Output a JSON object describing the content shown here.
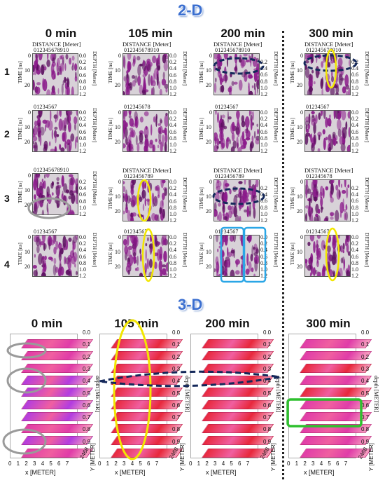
{
  "header": {
    "title_2d": "2-D",
    "title_3d": "3-D"
  },
  "columns_2d": [
    {
      "label": "0 min"
    },
    {
      "label": "105 min"
    },
    {
      "label": "200 min"
    },
    {
      "label": "300 min"
    }
  ],
  "columns_3d": [
    {
      "label": "0 min"
    },
    {
      "label": "105 min"
    },
    {
      "label": "200 min"
    },
    {
      "label": "300 min"
    }
  ],
  "rows": [
    "1",
    "2",
    "3",
    "4"
  ],
  "radar_axes": {
    "distance_label": "DISTANCE [Meter]",
    "time_label": "TIME [ns]",
    "depth_label": "DEPTH [Meter]",
    "ticks_10": "0 1 2 3 4 5 6 7 8 9 10",
    "ticks_9": "0 1 2 3 4 5 6 7 8 9",
    "ticks_8": "0 1 2 3 4 5 6 7 8",
    "ticks_7": "0 1 2 3 4 5 6 7",
    "time_ticks": [
      "0",
      "10",
      "20"
    ],
    "depth_ticks_a": [
      "0.0",
      "0.2",
      "0.4",
      "0.6",
      "0.8",
      "1.0",
      "1.2"
    ],
    "depth_ticks_b": [
      "0.2",
      "0.4",
      "0.6",
      "0.8",
      "1.0",
      "1.2"
    ]
  },
  "cube_axes": {
    "depth_label": "depth [METER]",
    "x_label": "x [METER]",
    "y_label": "Y [METER]",
    "x_ticks": "0 1 2 3 4 5 6 7",
    "y_ticks": "2 4 6 8",
    "depth_ticks": [
      "0.0",
      "0.1",
      "0.2",
      "0.3",
      "0.4",
      "0.5",
      "0.6",
      "0.7",
      "0.8",
      "0.9"
    ]
  },
  "colors": {
    "title_blue": "#3b6fd0",
    "radar_purple": "#8a1a8a",
    "radar_grey": "#d0d0d0",
    "slice_red": "#e8283c",
    "slice_pink": "#e03ca8",
    "slice_violet": "#b23ce0",
    "marker_navy": "#14285a",
    "marker_yellow": "#f2e600",
    "marker_grey": "#9a9a9a",
    "marker_cyan": "#2aa6e6",
    "marker_green": "#2ec02e"
  }
}
